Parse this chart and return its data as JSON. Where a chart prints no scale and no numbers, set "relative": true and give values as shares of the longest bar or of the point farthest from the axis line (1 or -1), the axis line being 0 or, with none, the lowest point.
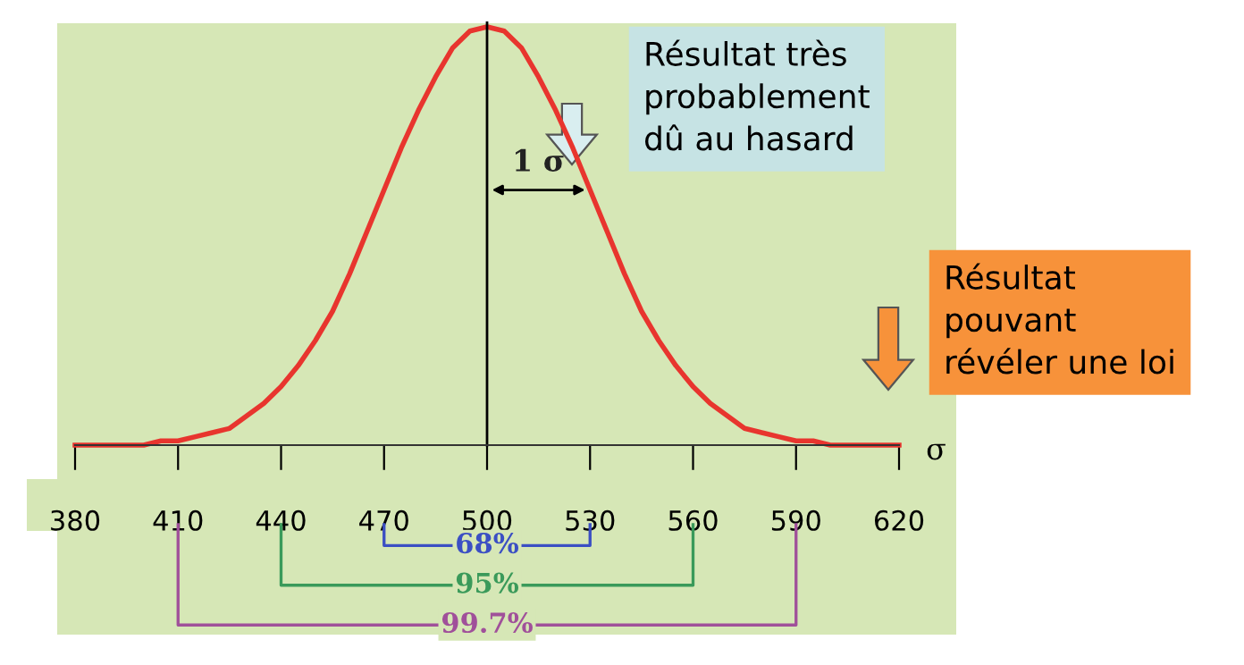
{
  "chart_data": {
    "type": "line",
    "relative": true,
    "xlabel": "σ",
    "x": [
      380,
      385,
      390,
      395,
      400,
      405,
      410,
      415,
      420,
      425,
      430,
      435,
      440,
      445,
      450,
      455,
      460,
      465,
      470,
      475,
      480,
      485,
      490,
      495,
      500,
      505,
      510,
      515,
      520,
      525,
      530,
      535,
      540,
      545,
      550,
      555,
      560,
      565,
      570,
      575,
      580,
      585,
      590,
      595,
      600,
      605,
      610,
      615,
      620
    ],
    "series": [
      {
        "color": "#e8352e",
        "values": [
          0,
          0,
          0,
          0,
          0,
          0.01,
          0.01,
          0.02,
          0.03,
          0.04,
          0.07,
          0.1,
          0.14,
          0.19,
          0.25,
          0.32,
          0.41,
          0.51,
          0.61,
          0.71,
          0.8,
          0.88,
          0.95,
          0.99,
          1,
          0.99,
          0.95,
          0.88,
          0.8,
          0.71,
          0.61,
          0.51,
          0.41,
          0.32,
          0.25,
          0.19,
          0.14,
          0.1,
          0.07,
          0.04,
          0.03,
          0.02,
          0.01,
          0.01,
          0,
          0,
          0,
          0,
          0
        ]
      }
    ],
    "xlim": [
      380,
      620
    ],
    "xticks": [
      380,
      410,
      440,
      470,
      500,
      530,
      560,
      590,
      620
    ],
    "ref_lines": [
      {
        "axis": "x",
        "value": 500,
        "color": "#000000"
      }
    ],
    "annotations": [
      {
        "text": "1 σ",
        "x": 530,
        "y": 0.61
      },
      "Résultat très\nprobablement\ndû au hasard",
      "Résultat\npouvant\nrévéler une loi",
      "68%",
      "95%",
      "99.7%"
    ],
    "grid": false,
    "legend": false,
    "marker": "none",
    "line_style": "solid"
  }
}
